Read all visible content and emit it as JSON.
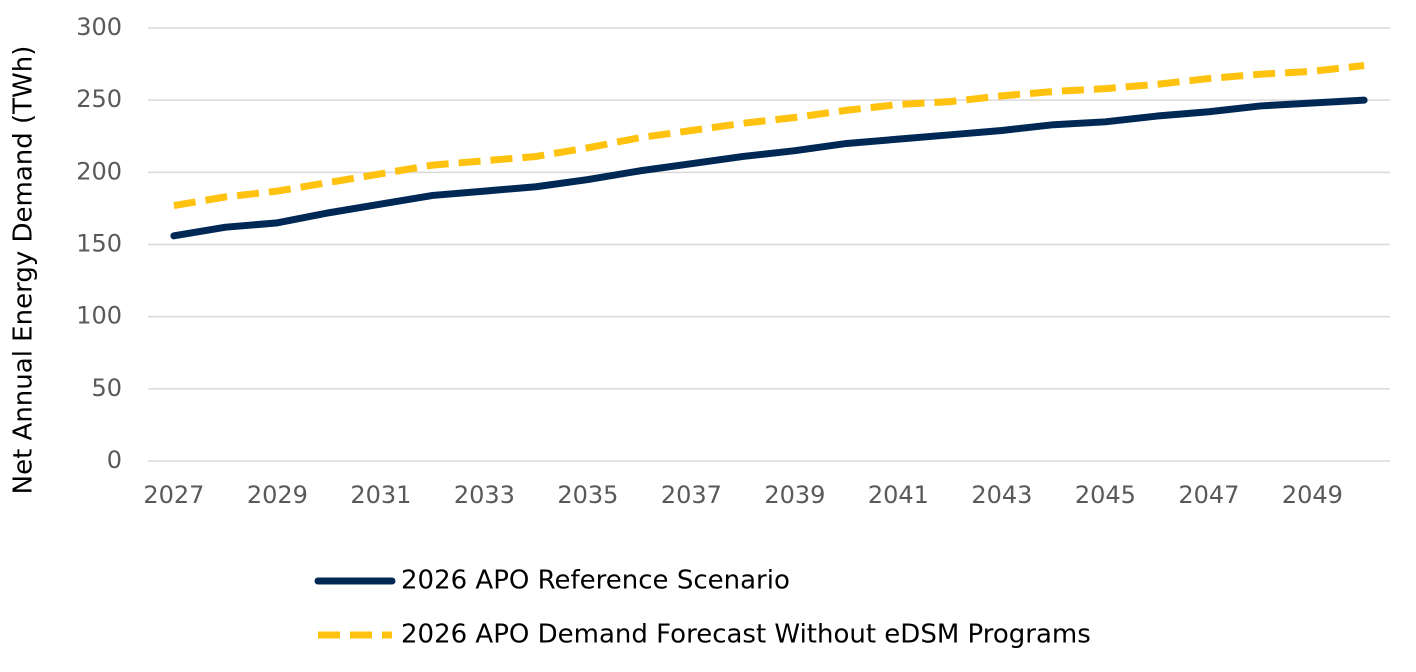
{
  "chart_data": {
    "type": "line",
    "y_label": "Net Annual Energy Demand (TWh)",
    "x": [
      2027,
      2028,
      2029,
      2030,
      2031,
      2032,
      2033,
      2034,
      2035,
      2036,
      2037,
      2038,
      2039,
      2040,
      2041,
      2042,
      2043,
      2044,
      2045,
      2046,
      2047,
      2048,
      2049,
      2050
    ],
    "xlim": [
      2026.5,
      2050.5
    ],
    "xticks": [
      2027,
      2029,
      2031,
      2033,
      2035,
      2037,
      2039,
      2041,
      2043,
      2045,
      2047,
      2049
    ],
    "ylim": [
      0,
      300
    ],
    "yticks": [
      0,
      50,
      100,
      150,
      200,
      250,
      300
    ],
    "grid": true,
    "legend": "bottom",
    "series": [
      {
        "name": "2026 APO Reference Scenario",
        "color": "#002855",
        "dash": false,
        "values": [
          156,
          162,
          165,
          172,
          178,
          184,
          187,
          190,
          195,
          201,
          206,
          211,
          215,
          220,
          223,
          226,
          229,
          233,
          235,
          239,
          242,
          246,
          248,
          250
        ]
      },
      {
        "name": "2026 APO Demand Forecast Without eDSM Programs",
        "color": "#FFC20E",
        "dash": true,
        "values": [
          177,
          183,
          187,
          193,
          199,
          205,
          208,
          211,
          217,
          224,
          229,
          234,
          238,
          243,
          247,
          249,
          253,
          256,
          258,
          261,
          265,
          268,
          270,
          274
        ]
      }
    ]
  }
}
